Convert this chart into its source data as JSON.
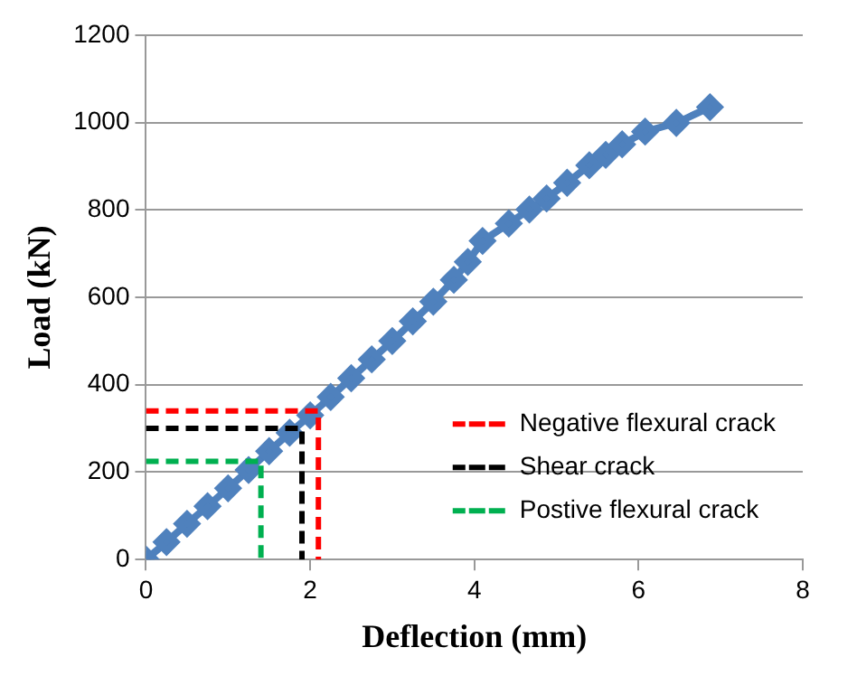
{
  "chart_data": {
    "type": "line",
    "xlabel": "Deflection (mm)",
    "ylabel": "Load (kN)",
    "xlim": [
      0,
      8
    ],
    "xticks": [
      0,
      2,
      4,
      6,
      8
    ],
    "ylim": [
      0,
      1200
    ],
    "yticks": [
      0,
      200,
      400,
      600,
      800,
      1000,
      1200
    ],
    "grid": "y",
    "legend": "bottom right",
    "series": [
      {
        "color": "#4f81bd",
        "marker": "diamond",
        "line_style": "solid",
        "x": [
          0,
          0.25,
          0.5,
          0.75,
          1.0,
          1.25,
          1.5,
          1.75,
          2.0,
          2.25,
          2.5,
          2.75,
          3.0,
          3.25,
          3.5,
          3.75,
          3.92,
          4.1,
          4.42,
          4.67,
          4.88,
          5.13,
          5.4,
          5.6,
          5.8,
          6.08,
          6.46,
          6.87
        ],
        "values": [
          0,
          40,
          82,
          122,
          163,
          205,
          248,
          290,
          330,
          372,
          415,
          458,
          500,
          545,
          590,
          640,
          681,
          729,
          769,
          801,
          826,
          862,
          902,
          926,
          950,
          979,
          999,
          1035
        ]
      },
      {
        "name": "Negative flexural crack",
        "color": "#ff0000",
        "marker": "none",
        "line_style": "dashed",
        "x": [
          0,
          2.1,
          2.1
        ],
        "values": [
          340,
          340,
          0
        ]
      },
      {
        "name": "Shear crack",
        "color": "#000000",
        "marker": "none",
        "line_style": "dashed",
        "x": [
          0,
          1.9,
          1.9
        ],
        "values": [
          300,
          300,
          0
        ]
      },
      {
        "name": "Postive flexural crack",
        "color": "#00b050",
        "marker": "none",
        "line_style": "dashed",
        "x": [
          0,
          1.4,
          1.4
        ],
        "values": [
          225,
          225,
          0
        ]
      }
    ]
  }
}
